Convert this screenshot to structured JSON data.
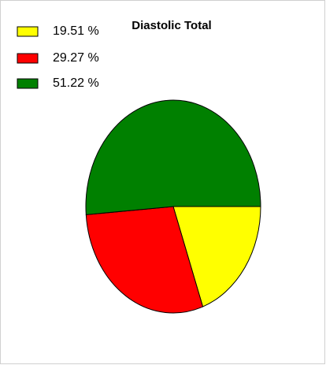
{
  "chart_data": {
    "type": "pie",
    "title": "Diastolic Total",
    "values": [
      19.51,
      29.27,
      51.22
    ],
    "value_labels": [
      "19.51 %",
      "29.27 %",
      "51.22 %"
    ],
    "colors": [
      "#ffff00",
      "#ff0000",
      "#008000"
    ]
  }
}
